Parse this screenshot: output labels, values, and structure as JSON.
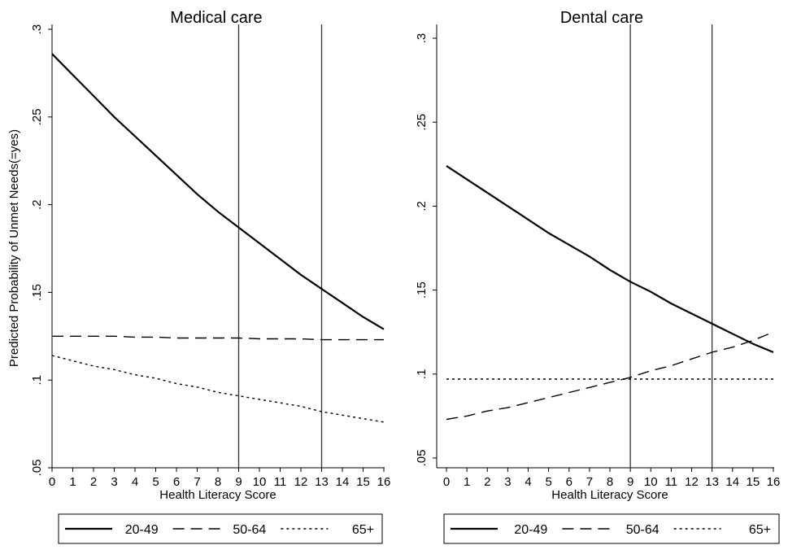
{
  "chart_data": [
    {
      "type": "line",
      "title": "Medical care",
      "xlabel": "Health Literacy Score",
      "ylabel": "Predicted Probability of Unmet Needs(=yes)",
      "xlim": [
        0,
        16
      ],
      "ylim": [
        0.05,
        0.3
      ],
      "x_ticks": [
        "0",
        "1",
        "2",
        "3",
        "4",
        "5",
        "6",
        "7",
        "8",
        "9",
        "10",
        "11",
        "12",
        "13",
        "14",
        "15",
        "16"
      ],
      "y_ticks": [
        ".05",
        ".1",
        ".15",
        ".2",
        ".25",
        ".3"
      ],
      "reference_lines_x": [
        9,
        13
      ],
      "legend_position": "bottom",
      "x": [
        0,
        1,
        2,
        3,
        4,
        5,
        6,
        7,
        8,
        9,
        10,
        11,
        12,
        13,
        14,
        15,
        16
      ],
      "series": [
        {
          "name": "20-49",
          "style": "solid",
          "values": [
            0.286,
            0.274,
            0.262,
            0.25,
            0.239,
            0.228,
            0.217,
            0.206,
            0.196,
            0.187,
            0.178,
            0.169,
            0.16,
            0.152,
            0.144,
            0.136,
            0.129
          ]
        },
        {
          "name": "50-64",
          "style": "dashed",
          "values": [
            0.125,
            0.125,
            0.125,
            0.125,
            0.1245,
            0.1245,
            0.124,
            0.124,
            0.124,
            0.124,
            0.1235,
            0.1235,
            0.1235,
            0.123,
            0.123,
            0.123,
            0.123
          ]
        },
        {
          "name": "65+",
          "style": "dotted",
          "values": [
            0.114,
            0.111,
            0.108,
            0.106,
            0.103,
            0.101,
            0.098,
            0.096,
            0.093,
            0.091,
            0.089,
            0.087,
            0.085,
            0.082,
            0.08,
            0.078,
            0.076
          ]
        }
      ]
    },
    {
      "type": "line",
      "title": "Dental care",
      "xlabel": "Health Literacy Score",
      "ylabel": "",
      "xlim": [
        0,
        16
      ],
      "ylim": [
        0.05,
        0.3
      ],
      "x_ticks": [
        "0",
        "1",
        "2",
        "3",
        "4",
        "5",
        "6",
        "7",
        "8",
        "9",
        "10",
        "11",
        "12",
        "13",
        "14",
        "15",
        "16"
      ],
      "y_ticks": [
        ".05",
        ".1",
        ".15",
        ".2",
        ".25",
        ".3"
      ],
      "reference_lines_x": [
        9,
        13
      ],
      "legend_position": "bottom",
      "x": [
        0,
        1,
        2,
        3,
        4,
        5,
        6,
        7,
        8,
        9,
        10,
        11,
        12,
        13,
        14,
        15,
        16
      ],
      "series": [
        {
          "name": "20-49",
          "style": "solid",
          "values": [
            0.224,
            0.216,
            0.208,
            0.2,
            0.192,
            0.184,
            0.177,
            0.17,
            0.162,
            0.155,
            0.149,
            0.142,
            0.136,
            0.13,
            0.124,
            0.118,
            0.113
          ]
        },
        {
          "name": "50-64",
          "style": "dashed",
          "values": [
            0.073,
            0.075,
            0.078,
            0.08,
            0.083,
            0.086,
            0.089,
            0.092,
            0.095,
            0.098,
            0.102,
            0.105,
            0.109,
            0.113,
            0.116,
            0.12,
            0.125
          ]
        },
        {
          "name": "65+",
          "style": "dotted",
          "values": [
            0.097,
            0.097,
            0.097,
            0.097,
            0.097,
            0.097,
            0.097,
            0.097,
            0.097,
            0.097,
            0.097,
            0.097,
            0.097,
            0.097,
            0.097,
            0.097,
            0.097
          ]
        }
      ]
    }
  ]
}
